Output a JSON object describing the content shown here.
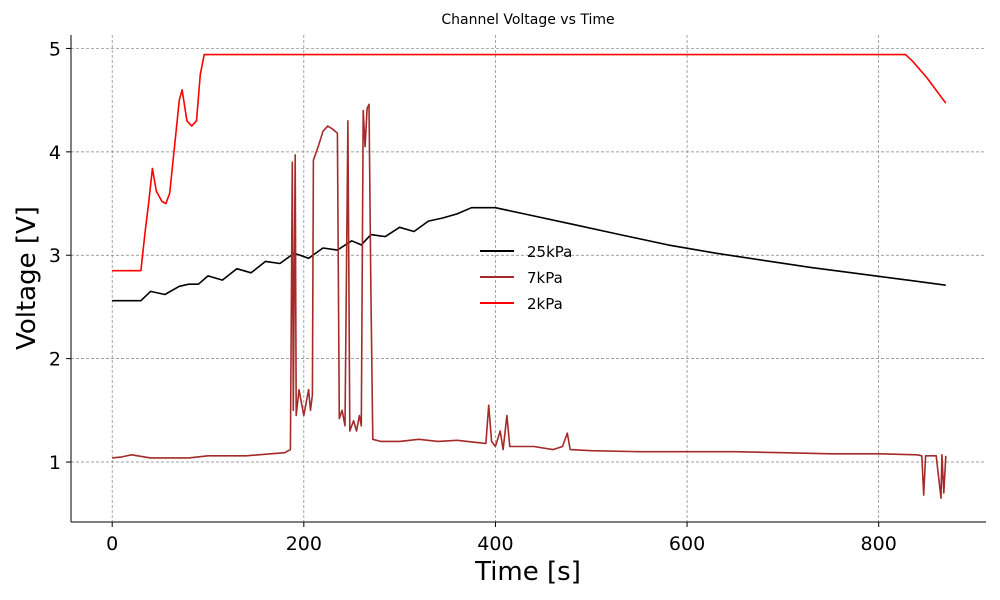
{
  "chart_data": {
    "type": "line",
    "title": "Channel Voltage vs Time",
    "xlabel": "Time [s]",
    "ylabel": "Voltage [V]",
    "xlim": [
      -43,
      912
    ],
    "ylim": [
      0.42,
      5.13
    ],
    "xticks": [
      0,
      200,
      400,
      600,
      800
    ],
    "yticks": [
      1,
      2,
      3,
      4,
      5
    ],
    "grid": true,
    "legend_position": "center",
    "series": [
      {
        "name": "25kPa",
        "color": "#000000",
        "points": [
          [
            0,
            2.56
          ],
          [
            30,
            2.56
          ],
          [
            40,
            2.65
          ],
          [
            55,
            2.62
          ],
          [
            70,
            2.7
          ],
          [
            80,
            2.72
          ],
          [
            90,
            2.72
          ],
          [
            100,
            2.8
          ],
          [
            115,
            2.76
          ],
          [
            130,
            2.87
          ],
          [
            145,
            2.83
          ],
          [
            160,
            2.94
          ],
          [
            175,
            2.92
          ],
          [
            190,
            3.02
          ],
          [
            205,
            2.97
          ],
          [
            220,
            3.07
          ],
          [
            235,
            3.05
          ],
          [
            250,
            3.14
          ],
          [
            260,
            3.1
          ],
          [
            270,
            3.2
          ],
          [
            285,
            3.18
          ],
          [
            300,
            3.27
          ],
          [
            315,
            3.23
          ],
          [
            330,
            3.33
          ],
          [
            345,
            3.36
          ],
          [
            360,
            3.4
          ],
          [
            375,
            3.46
          ],
          [
            400,
            3.46
          ],
          [
            430,
            3.4
          ],
          [
            480,
            3.3
          ],
          [
            530,
            3.2
          ],
          [
            580,
            3.1
          ],
          [
            630,
            3.02
          ],
          [
            680,
            2.95
          ],
          [
            730,
            2.88
          ],
          [
            780,
            2.82
          ],
          [
            830,
            2.76
          ],
          [
            870,
            2.71
          ]
        ]
      },
      {
        "name": "7kPa",
        "color": "#a52a2a",
        "points": [
          [
            0,
            1.04
          ],
          [
            10,
            1.05
          ],
          [
            20,
            1.07
          ],
          [
            40,
            1.04
          ],
          [
            60,
            1.04
          ],
          [
            80,
            1.04
          ],
          [
            100,
            1.06
          ],
          [
            140,
            1.06
          ],
          [
            180,
            1.09
          ],
          [
            186,
            1.12
          ],
          [
            188,
            3.9
          ],
          [
            189,
            1.5
          ],
          [
            191,
            3.97
          ],
          [
            192,
            1.45
          ],
          [
            195,
            1.7
          ],
          [
            200,
            1.45
          ],
          [
            205,
            1.7
          ],
          [
            207,
            1.5
          ],
          [
            209,
            1.65
          ],
          [
            210,
            3.92
          ],
          [
            215,
            4.05
          ],
          [
            220,
            4.2
          ],
          [
            225,
            4.25
          ],
          [
            230,
            4.22
          ],
          [
            235,
            4.18
          ],
          [
            237,
            1.42
          ],
          [
            240,
            1.5
          ],
          [
            243,
            1.35
          ],
          [
            246,
            4.3
          ],
          [
            248,
            1.3
          ],
          [
            252,
            1.4
          ],
          [
            255,
            1.3
          ],
          [
            258,
            1.45
          ],
          [
            260,
            1.35
          ],
          [
            262,
            4.4
          ],
          [
            264,
            4.05
          ],
          [
            266,
            4.42
          ],
          [
            268,
            4.46
          ],
          [
            270,
            2.65
          ],
          [
            272,
            1.22
          ],
          [
            280,
            1.2
          ],
          [
            300,
            1.2
          ],
          [
            320,
            1.22
          ],
          [
            340,
            1.2
          ],
          [
            360,
            1.21
          ],
          [
            380,
            1.19
          ],
          [
            390,
            1.18
          ],
          [
            393,
            1.55
          ],
          [
            396,
            1.2
          ],
          [
            400,
            1.15
          ],
          [
            405,
            1.3
          ],
          [
            408,
            1.12
          ],
          [
            412,
            1.45
          ],
          [
            415,
            1.15
          ],
          [
            440,
            1.15
          ],
          [
            460,
            1.12
          ],
          [
            470,
            1.15
          ],
          [
            475,
            1.28
          ],
          [
            478,
            1.12
          ],
          [
            500,
            1.11
          ],
          [
            550,
            1.1
          ],
          [
            600,
            1.1
          ],
          [
            650,
            1.1
          ],
          [
            700,
            1.09
          ],
          [
            750,
            1.08
          ],
          [
            800,
            1.08
          ],
          [
            840,
            1.07
          ],
          [
            845,
            1.06
          ],
          [
            847,
            0.68
          ],
          [
            849,
            1.06
          ],
          [
            860,
            1.06
          ],
          [
            865,
            0.65
          ],
          [
            866,
            1.07
          ],
          [
            868,
            0.7
          ],
          [
            870,
            1.06
          ]
        ]
      },
      {
        "name": "2kPa",
        "color": "#ff0000",
        "points": [
          [
            0,
            2.85
          ],
          [
            30,
            2.85
          ],
          [
            34,
            3.2
          ],
          [
            38,
            3.5
          ],
          [
            42,
            3.84
          ],
          [
            46,
            3.62
          ],
          [
            52,
            3.52
          ],
          [
            56,
            3.5
          ],
          [
            60,
            3.6
          ],
          [
            65,
            4.05
          ],
          [
            70,
            4.5
          ],
          [
            73,
            4.6
          ],
          [
            78,
            4.3
          ],
          [
            83,
            4.25
          ],
          [
            88,
            4.3
          ],
          [
            92,
            4.75
          ],
          [
            96,
            4.94
          ],
          [
            200,
            4.94
          ],
          [
            400,
            4.94
          ],
          [
            600,
            4.94
          ],
          [
            828,
            4.94
          ],
          [
            835,
            4.88
          ],
          [
            850,
            4.72
          ],
          [
            870,
            4.47
          ]
        ]
      }
    ]
  }
}
